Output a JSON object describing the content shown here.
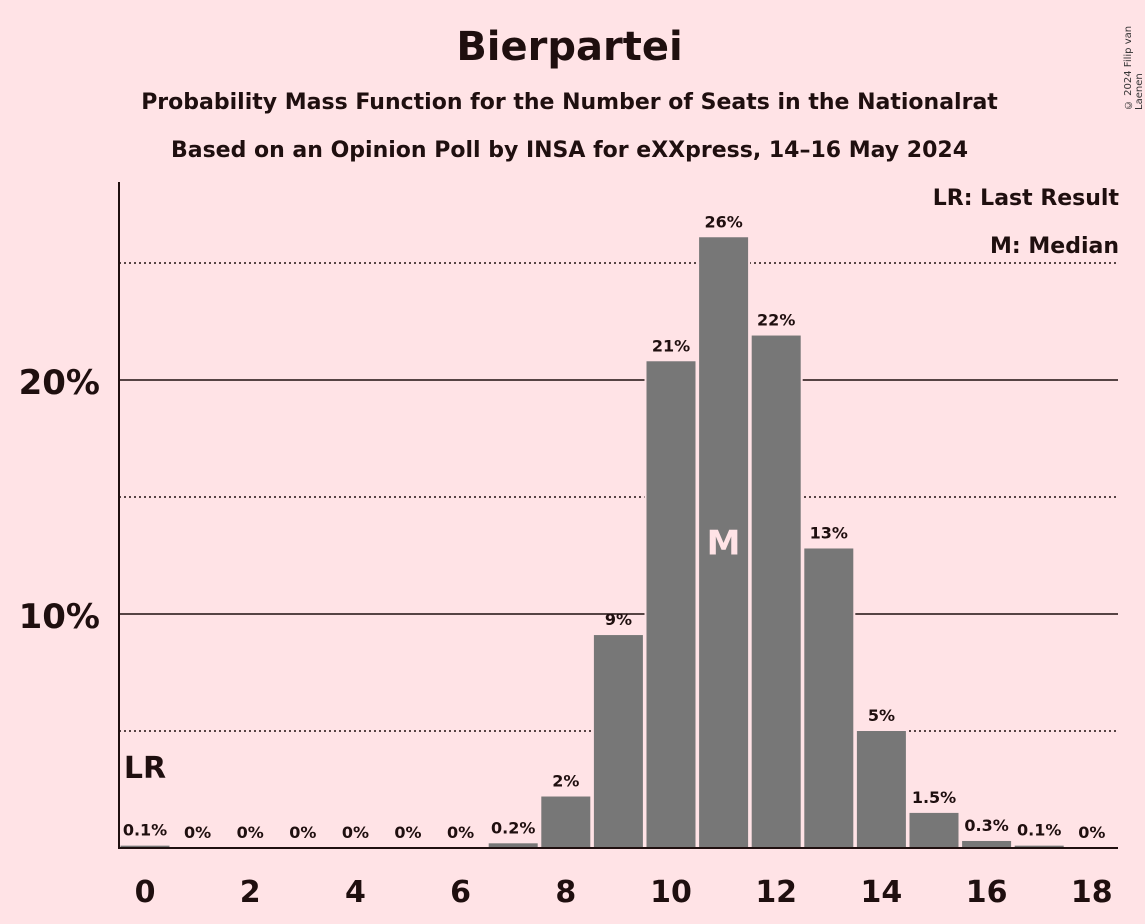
{
  "header": {
    "title": "Bierpartei",
    "subtitle1": "Probability Mass Function for the Number of Seats in the Nationalrat",
    "subtitle2": "Based on an Opinion Poll by INSA for eXXpress, 14–16 May 2024",
    "copyright": "© 2024 Filip van Laenen"
  },
  "legend": {
    "last_result": "LR: Last Result",
    "median": "M: Median"
  },
  "chart_data": {
    "type": "bar",
    "x": [
      0,
      1,
      2,
      3,
      4,
      5,
      6,
      7,
      8,
      9,
      10,
      11,
      12,
      13,
      14,
      15,
      16,
      17,
      18
    ],
    "values": [
      0.1,
      0,
      0,
      0,
      0,
      0,
      0,
      0.2,
      2.2,
      9.1,
      20.8,
      26.1,
      21.9,
      12.8,
      5.0,
      1.5,
      0.3,
      0.1,
      0
    ],
    "labels": [
      "0.1%",
      "0%",
      "0%",
      "0%",
      "0%",
      "0%",
      "0%",
      "0.2%",
      "2%",
      "9%",
      "21%",
      "26%",
      "22%",
      "13%",
      "5%",
      "1.5%",
      "0.3%",
      "0.1%",
      "0%"
    ],
    "xticks": [
      "0",
      "2",
      "4",
      "6",
      "8",
      "10",
      "12",
      "14",
      "16",
      "18"
    ],
    "yticks": [
      "10%",
      "20%"
    ],
    "ylim": [
      0,
      28
    ],
    "major_grid": [
      10,
      20
    ],
    "minor_grid": [
      5,
      15,
      25
    ],
    "last_result_seat": 0,
    "last_result_label": "LR",
    "median_seat": 11,
    "median_label": "M",
    "colors": {
      "background": "#ffe3e6",
      "bar": "#777777",
      "text": "#1f0f0f",
      "median_text": "#ffe3e6"
    }
  }
}
